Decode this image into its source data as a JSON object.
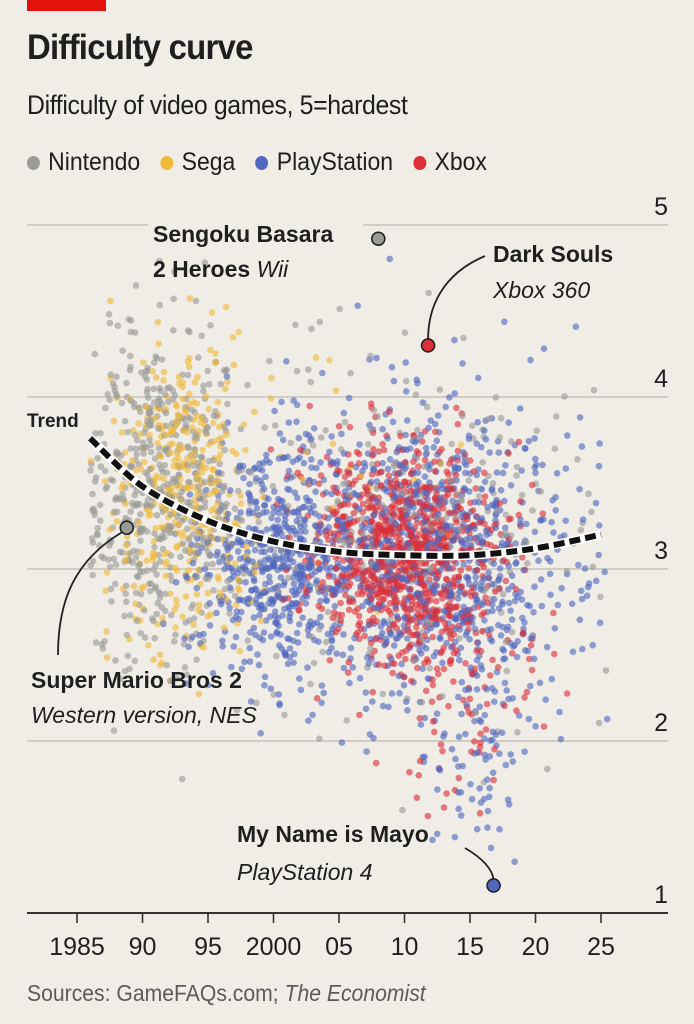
{
  "header": {
    "title": "Difficulty curve",
    "subtitle": "Difficulty of video games, 5=hardest"
  },
  "legend": [
    {
      "label": "Nintendo",
      "color": "#9a9a96"
    },
    {
      "label": "Sega",
      "color": "#f0b93a"
    },
    {
      "label": "PlayStation",
      "color": "#5068bf"
    },
    {
      "label": "Xbox",
      "color": "#dc2f38"
    }
  ],
  "footer": {
    "source_prefix": "Sources: GameFAQs.com; ",
    "source_italic": "The Economist"
  },
  "colors": {
    "background": "#efede6",
    "accent_tag": "#e3120b",
    "gridline": "#cfcdc6",
    "axis": "#333333",
    "text": "#1f1f1f"
  },
  "chart_data": {
    "type": "scatter",
    "title": "Difficulty curve",
    "subtitle": "Difficulty of video games, 5=hardest",
    "xlabel": "",
    "ylabel": "",
    "xlim": [
      1981,
      2030
    ],
    "ylim": [
      1,
      5
    ],
    "x_ticks": [
      1985,
      1990,
      1995,
      2000,
      2005,
      2010,
      2015,
      2020,
      2025
    ],
    "x_tick_labels": [
      "1985",
      "90",
      "95",
      "2000",
      "05",
      "10",
      "15",
      "20",
      "25"
    ],
    "y_ticks": [
      1,
      2,
      3,
      4,
      5
    ],
    "y_tick_labels": [
      "1",
      "2",
      "3",
      "4",
      "5"
    ],
    "grid": {
      "horizontal": true,
      "vertical": false
    },
    "legend_position": "top",
    "series": [
      {
        "name": "Nintendo",
        "color": "#9a9a96",
        "clusters": [
          {
            "x_mean": 1991.5,
            "x_sd": 3.2,
            "y_mean": 3.45,
            "y_sd": 0.48,
            "n": 520
          },
          {
            "x_mean": 2010,
            "x_sd": 7.5,
            "y_mean": 3.2,
            "y_sd": 0.55,
            "n": 260
          }
        ]
      },
      {
        "name": "Sega",
        "color": "#f0b93a",
        "clusters": [
          {
            "x_mean": 1993,
            "x_sd": 2.6,
            "y_mean": 3.45,
            "y_sd": 0.45,
            "n": 360
          },
          {
            "x_mean": 2003,
            "x_sd": 6,
            "y_mean": 3.3,
            "y_sd": 0.5,
            "n": 25
          }
        ]
      },
      {
        "name": "PlayStation",
        "color": "#5068bf",
        "clusters": [
          {
            "x_mean": 2000,
            "x_sd": 2.8,
            "y_mean": 3.05,
            "y_sd": 0.32,
            "n": 520
          },
          {
            "x_mean": 2012,
            "x_sd": 5.5,
            "y_mean": 3.1,
            "y_sd": 0.45,
            "n": 900
          },
          {
            "x_mean": 2016,
            "x_sd": 2,
            "y_mean": 2.0,
            "y_sd": 0.35,
            "n": 70
          }
        ]
      },
      {
        "name": "Xbox",
        "color": "#dc2f38",
        "clusters": [
          {
            "x_mean": 2010,
            "x_sd": 3.5,
            "y_mean": 3.1,
            "y_sd": 0.3,
            "n": 900
          },
          {
            "x_mean": 2014,
            "x_sd": 3,
            "y_mean": 2.5,
            "y_sd": 0.4,
            "n": 120
          }
        ]
      }
    ],
    "trend": {
      "label": "Trend",
      "style": "dashed",
      "points": [
        [
          1986,
          3.76
        ],
        [
          1990,
          3.48
        ],
        [
          1995,
          3.28
        ],
        [
          2000,
          3.16
        ],
        [
          2005,
          3.1
        ],
        [
          2010,
          3.08
        ],
        [
          2015,
          3.08
        ],
        [
          2020,
          3.12
        ],
        [
          2025,
          3.2
        ]
      ]
    },
    "annotations": [
      {
        "title": "Sengoku Basara",
        "title2": "2 Heroes",
        "platform": "Wii",
        "series": "Nintendo",
        "x": 2008,
        "y": 4.92
      },
      {
        "title": "Dark Souls",
        "platform": "Xbox 360",
        "series": "Xbox",
        "x": 2011.8,
        "y": 4.3
      },
      {
        "title": "Super Mario Bros 2",
        "platform": "Western version, NES",
        "series": "Nintendo",
        "x": 1988.8,
        "y": 3.24
      },
      {
        "title": "My Name is Mayo",
        "platform": "PlayStation 4",
        "series": "PlayStation",
        "x": 2016.8,
        "y": 1.16
      }
    ]
  }
}
